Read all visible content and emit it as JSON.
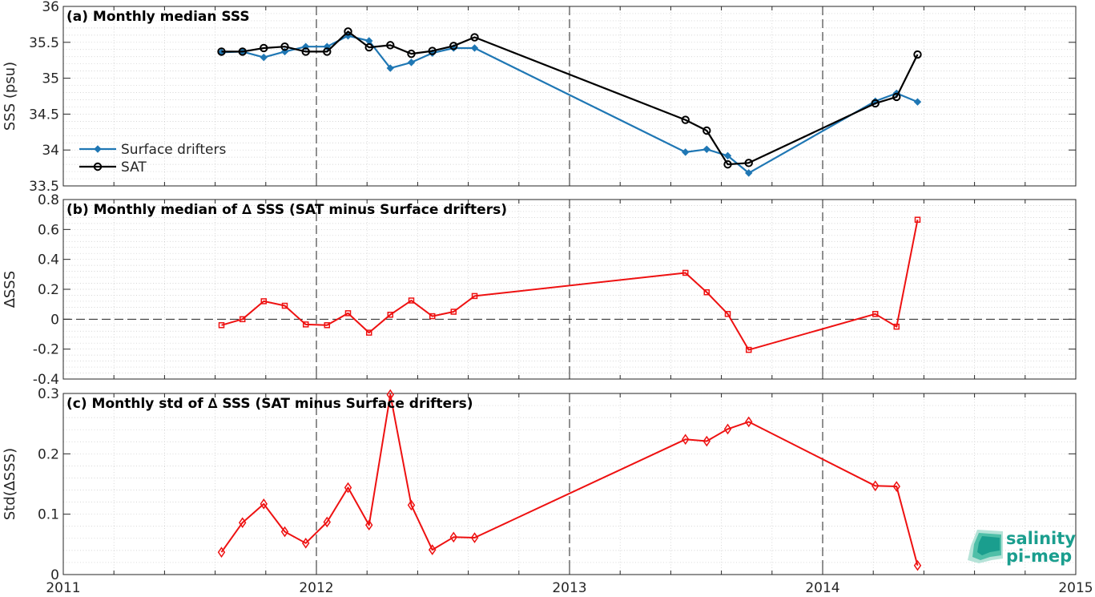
{
  "chart_data": [
    {
      "type": "line",
      "title": "(a) Monthly median SSS",
      "ylabel": "SSS (psu)",
      "xlim": [
        2011,
        2015
      ],
      "ylim": [
        33.5,
        36
      ],
      "yticks": [
        33.5,
        34,
        34.5,
        35,
        35.5,
        36
      ],
      "ytick_labels": [
        "33.5",
        "34",
        "34.5",
        "35",
        "35.5",
        "36"
      ],
      "grid": true,
      "legend_location": "bottom-left",
      "series": [
        {
          "name": "Surface drifters",
          "color": "#1f77b4",
          "marker": "filled-diamond",
          "x": [
            2011.625,
            2011.708,
            2011.792,
            2011.875,
            2011.958,
            2012.042,
            2012.125,
            2012.208,
            2012.292,
            2012.375,
            2012.458,
            2012.542,
            2012.625,
            2013.458,
            2013.542,
            2013.625,
            2013.708,
            2014.208,
            2014.292,
            2014.375
          ],
          "y": [
            35.36,
            35.37,
            35.29,
            35.37,
            35.44,
            35.44,
            35.59,
            35.52,
            35.14,
            35.22,
            35.35,
            35.42,
            35.42,
            33.97,
            34.01,
            33.92,
            33.68,
            34.68,
            34.79,
            34.67
          ]
        },
        {
          "name": "SAT",
          "color": "#000000",
          "marker": "open-circle",
          "x": [
            2011.625,
            2011.708,
            2011.792,
            2011.875,
            2011.958,
            2012.042,
            2012.125,
            2012.208,
            2012.292,
            2012.375,
            2012.458,
            2012.542,
            2012.625,
            2013.458,
            2013.542,
            2013.625,
            2013.708,
            2014.208,
            2014.292,
            2014.375
          ],
          "y": [
            35.37,
            35.37,
            35.42,
            35.44,
            35.37,
            35.37,
            35.65,
            35.43,
            35.46,
            35.34,
            35.38,
            35.45,
            35.57,
            34.42,
            34.27,
            33.8,
            33.82,
            34.65,
            34.74,
            35.33
          ]
        }
      ]
    },
    {
      "type": "line",
      "title": "(b) Monthly median of ∆ SSS (SAT minus Surface drifters)",
      "ylabel": "∆SSS",
      "xlim": [
        2011,
        2015
      ],
      "ylim": [
        -0.4,
        0.8
      ],
      "yticks": [
        -0.4,
        -0.2,
        0,
        0.2,
        0.4,
        0.6,
        0.8
      ],
      "ytick_labels": [
        "-0.4",
        "-0.2",
        "0",
        "0.2",
        "0.4",
        "0.6",
        "0.8"
      ],
      "grid": true,
      "zero_line": true,
      "series": [
        {
          "color": "#ee1111",
          "marker": "open-square",
          "x": [
            2011.625,
            2011.708,
            2011.792,
            2011.875,
            2011.958,
            2012.042,
            2012.125,
            2012.208,
            2012.292,
            2012.375,
            2012.458,
            2012.542,
            2012.625,
            2013.458,
            2013.542,
            2013.625,
            2013.708,
            2014.208,
            2014.292,
            2014.375
          ],
          "y": [
            -0.04,
            0.0,
            0.12,
            0.09,
            -0.035,
            -0.04,
            0.04,
            -0.09,
            0.03,
            0.125,
            0.02,
            0.05,
            0.155,
            0.31,
            0.18,
            0.035,
            -0.205,
            0.035,
            -0.05,
            0.665
          ]
        }
      ]
    },
    {
      "type": "line",
      "title": "(c) Monthly std of ∆ SSS (SAT minus Surface drifters)",
      "ylabel": "Std(∆SSS)",
      "xlim": [
        2011,
        2015
      ],
      "ylim": [
        0,
        0.3
      ],
      "yticks": [
        0,
        0.1,
        0.2,
        0.3
      ],
      "ytick_labels": [
        "0",
        "0.1",
        "0.2",
        "0.3"
      ],
      "xticks": [
        2011,
        2012,
        2013,
        2014,
        2015
      ],
      "xtick_labels": [
        "2011",
        "2012",
        "2013",
        "2014",
        "2015"
      ],
      "grid": true,
      "series": [
        {
          "color": "#ee1111",
          "marker": "open-diamond",
          "x": [
            2011.625,
            2011.708,
            2011.792,
            2011.875,
            2011.958,
            2012.042,
            2012.125,
            2012.208,
            2012.292,
            2012.375,
            2012.458,
            2012.542,
            2012.625,
            2013.458,
            2013.542,
            2013.625,
            2013.708,
            2014.208,
            2014.292,
            2014.375
          ],
          "y": [
            0.037,
            0.086,
            0.117,
            0.071,
            0.052,
            0.087,
            0.144,
            0.082,
            0.298,
            0.115,
            0.041,
            0.062,
            0.061,
            0.224,
            0.221,
            0.241,
            0.253,
            0.147,
            0.146,
            0.015
          ]
        }
      ]
    }
  ],
  "logo": {
    "line1": "salinity",
    "line2": "pi-mep",
    "color": "#1a9e8e"
  }
}
